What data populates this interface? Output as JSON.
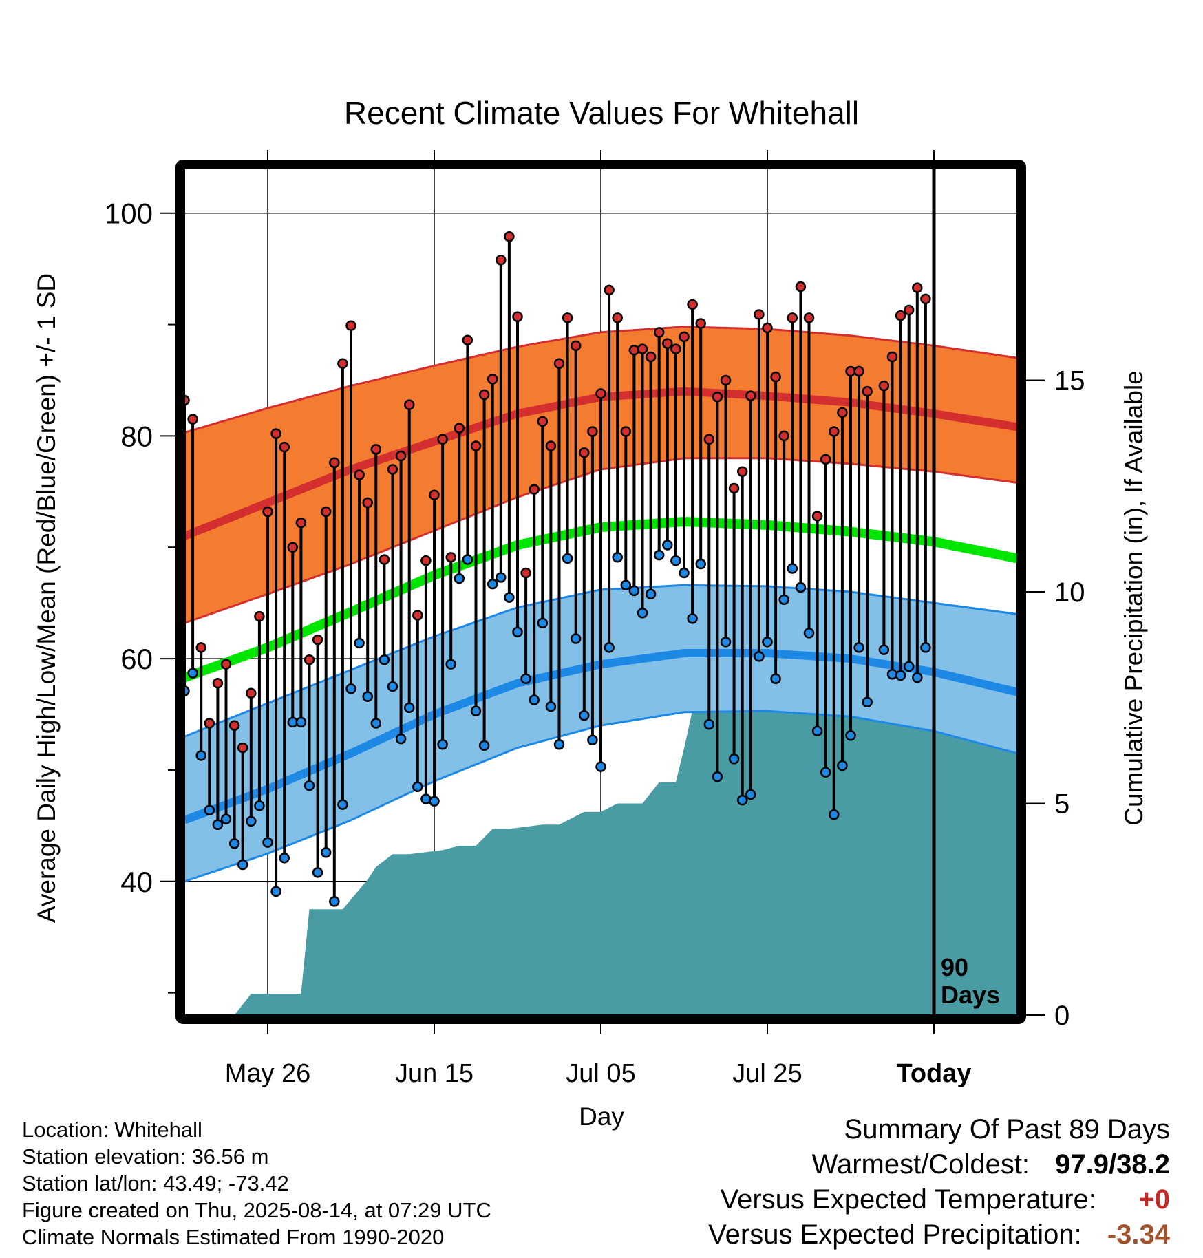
{
  "chart_data": {
    "type": "line",
    "title": "Recent Climate Values For Whitehall",
    "xlabel": "Day",
    "ylabel": "Average Daily High/Low/Mean (Red/Blue/Green) +/- 1 SD",
    "y2label": "Cumulative Precipitation (in), If Available",
    "ylim": [
      28,
      104
    ],
    "y2lim": [
      0,
      20
    ],
    "yticks": [
      40,
      60,
      80,
      100
    ],
    "y2ticks": [
      0,
      5,
      10,
      15
    ],
    "x_start": "2025-05-16",
    "x_end": "2025-08-24",
    "today": "2025-08-14",
    "xticks": [
      {
        "date": "2025-05-26",
        "label": "May 26"
      },
      {
        "date": "2025-06-15",
        "label": "Jun 15"
      },
      {
        "date": "2025-07-05",
        "label": "Jul 05"
      },
      {
        "date": "2025-07-25",
        "label": "Jul 25"
      },
      {
        "date": "2025-08-14",
        "label": "Today"
      }
    ],
    "today_label_1": "90",
    "today_label_2": "Days",
    "grid": true,
    "colors": {
      "high_band": "#f47c30",
      "high_mean": "#d32f2f",
      "low_band": "#82c0e8",
      "low_mean": "#1e88e5",
      "mean": "#00e600",
      "precip": "#4a9ca4",
      "high_point": "#d32f2f",
      "low_point": "#1e88e5"
    },
    "normals": {
      "dates": [
        "2025-05-16",
        "2025-05-26",
        "2025-06-05",
        "2025-06-15",
        "2025-06-25",
        "2025-07-05",
        "2025-07-15",
        "2025-07-25",
        "2025-08-04",
        "2025-08-14",
        "2025-08-24"
      ],
      "high_mean": [
        71.0,
        74.0,
        77.0,
        79.5,
        82.0,
        83.5,
        84.0,
        83.6,
        83.0,
        82.0,
        80.8
      ],
      "high_upper": [
        80.3,
        82.5,
        84.5,
        86.3,
        88.0,
        89.3,
        89.8,
        89.6,
        89.0,
        88.1,
        87.0
      ],
      "high_lower": [
        63.2,
        65.8,
        68.5,
        71.5,
        74.5,
        77.0,
        78.0,
        78.0,
        77.5,
        76.8,
        75.8
      ],
      "mean": [
        58.3,
        61.0,
        64.2,
        67.5,
        70.2,
        71.8,
        72.3,
        72.0,
        71.4,
        70.5,
        69.0
      ],
      "low_mean": [
        45.5,
        48.3,
        51.5,
        55.0,
        57.8,
        59.5,
        60.5,
        60.5,
        60.0,
        58.8,
        57.0
      ],
      "low_upper": [
        53.0,
        56.0,
        59.0,
        62.0,
        64.6,
        66.2,
        66.6,
        66.5,
        66.0,
        65.0,
        64.0
      ],
      "low_lower": [
        40.0,
        42.5,
        45.5,
        49.0,
        52.0,
        54.0,
        55.2,
        55.3,
        54.8,
        53.5,
        51.5
      ]
    },
    "start_date": "2025-05-16",
    "highs": [
      83.2,
      81.5,
      61,
      54.2,
      57.8,
      59.5,
      54,
      52,
      56.9,
      63.8,
      73.2,
      80.2,
      79,
      70,
      72.2,
      59.9,
      61.7,
      73.2,
      77.6,
      86.5,
      89.9,
      76.5,
      74,
      78.8,
      68.9,
      77,
      78.2,
      82.8,
      63.9,
      68.8,
      74.7,
      79.7,
      69.1,
      80.7,
      88.6,
      79.1,
      83.7,
      85.1,
      95.8,
      97.9,
      90.7,
      67.7,
      75.2,
      81.3,
      79.1,
      86.5,
      90.6,
      88.1,
      78.5,
      80.4,
      83.8,
      93.1,
      90.6,
      80.4,
      87.7,
      87.8,
      87.1,
      89.3,
      88.3,
      87.8,
      88.9,
      91.8,
      90.1,
      79.7,
      83.5,
      85,
      75.3,
      76.8,
      83.6,
      90.9,
      89.7,
      85.3,
      80,
      90.6,
      93.4,
      90.6,
      72.8,
      77.9,
      80.4,
      82.1,
      85.8,
      85.8,
      84,
      null,
      84.5,
      87.1,
      90.8,
      91.3,
      93.3,
      92.3
    ],
    "lows": [
      57.1,
      58.7,
      51.3,
      46.4,
      45.1,
      45.6,
      43.4,
      41.5,
      45.4,
      46.8,
      43.5,
      39.1,
      42.1,
      54.3,
      54.3,
      48.6,
      40.8,
      42.6,
      38.2,
      46.9,
      57.3,
      61.4,
      56.6,
      54.2,
      59.9,
      57.5,
      52.8,
      55.6,
      48.5,
      47.4,
      47.2,
      52.3,
      59.5,
      67.2,
      68.9,
      55.3,
      52.2,
      66.7,
      67.3,
      65.5,
      62.4,
      58.2,
      56.3,
      63.2,
      55.7,
      52.3,
      69,
      61.8,
      54.9,
      52.7,
      50.3,
      61,
      69.1,
      66.6,
      66.1,
      64.1,
      65.8,
      69.3,
      70.2,
      68.8,
      67.7,
      63.6,
      68.5,
      54.1,
      49.4,
      61.5,
      51,
      47.3,
      47.8,
      60.2,
      61.5,
      58.2,
      65.3,
      68.1,
      66.4,
      62.3,
      53.5,
      49.8,
      46,
      50.4,
      53.1,
      61,
      56.1,
      null,
      60.8,
      58.6,
      58.5,
      59.3,
      58.3,
      61
    ],
    "precip_cumulative": {
      "dates": [
        "2025-05-16",
        "2025-05-22",
        "2025-05-24",
        "2025-05-30",
        "2025-05-31",
        "2025-06-04",
        "2025-06-07",
        "2025-06-08",
        "2025-06-10",
        "2025-06-12",
        "2025-06-16",
        "2025-06-18",
        "2025-06-20",
        "2025-06-22",
        "2025-06-24",
        "2025-06-28",
        "2025-06-30",
        "2025-07-03",
        "2025-07-05",
        "2025-07-07",
        "2025-07-10",
        "2025-07-12",
        "2025-07-14",
        "2025-07-15",
        "2025-07-16",
        "2025-07-19",
        "2025-07-21",
        "2025-07-27",
        "2025-07-29",
        "2025-08-04",
        "2025-08-06",
        "2025-08-11",
        "2025-08-13",
        "2025-08-24"
      ],
      "values": [
        0,
        0,
        0.5,
        0.5,
        2.5,
        2.5,
        3.2,
        3.5,
        3.8,
        3.8,
        3.9,
        4.0,
        4.0,
        4.4,
        4.4,
        4.5,
        4.5,
        4.8,
        4.8,
        5.0,
        5.0,
        5.5,
        5.5,
        6.3,
        7.2,
        7.3,
        7.5,
        7.5,
        8.0,
        8.1,
        8.3,
        8.5,
        8.7,
        8.7
      ]
    }
  },
  "info": {
    "location": "Location: Whitehall",
    "elevation": "Station elevation: 36.56 m",
    "latlon": "Station lat/lon: 43.49; -73.42",
    "created": "Figure created on Thu, 2025-08-14, at 07:29 UTC",
    "normals": "Climate Normals Estimated From 1990-2020"
  },
  "summary": {
    "title": "Summary Of Past 89 Days",
    "warmest_label": "Warmest/Coldest:",
    "warmest_value": "97.9/38.2",
    "temp_label": "Versus Expected Temperature:",
    "temp_value": "+0",
    "precip_label": "Versus Expected Precipitation:",
    "precip_value": "-3.34"
  }
}
